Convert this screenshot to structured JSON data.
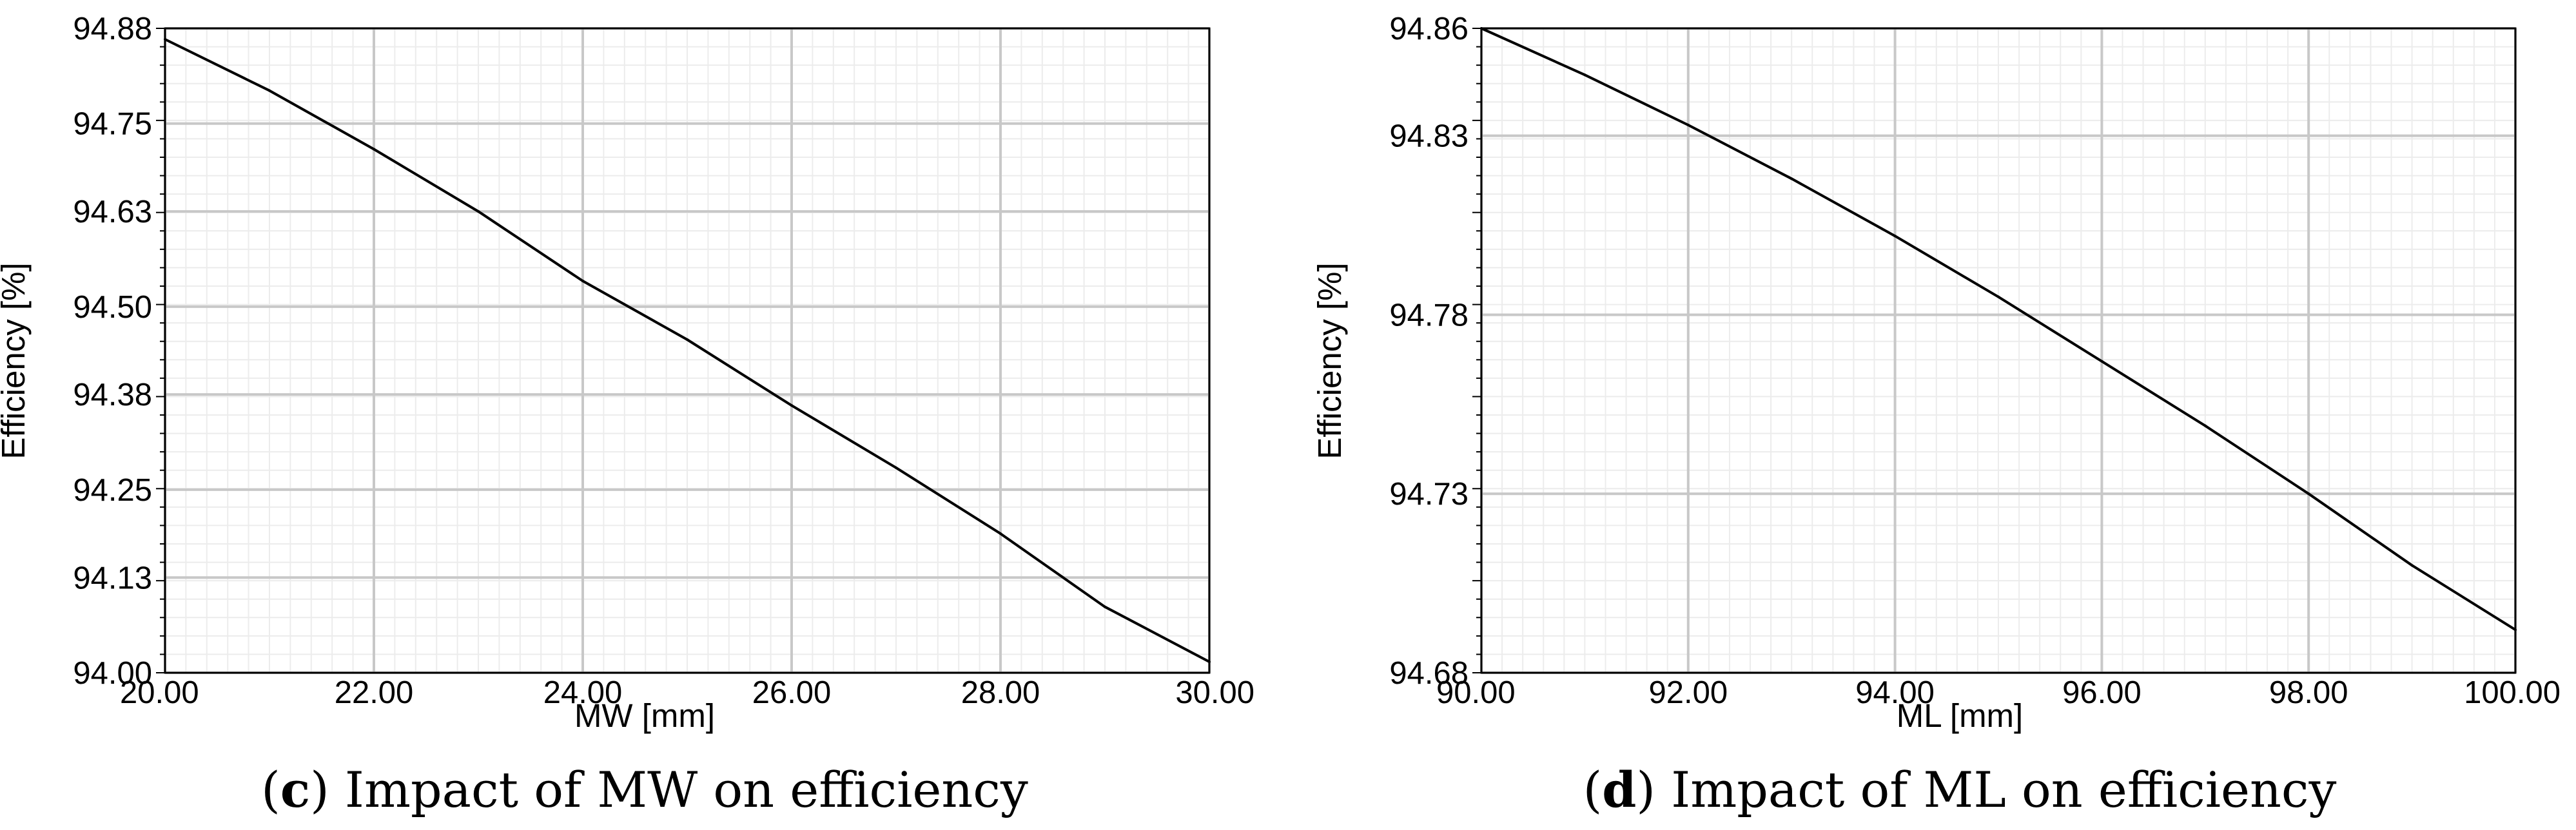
{
  "chart_data": [
    {
      "type": "line",
      "caption_letter": "c",
      "caption_text": "Impact of MW on efficiency",
      "xlabel": "MW [mm]",
      "ylabel": "Efficiency [%]",
      "xlim": [
        20,
        30
      ],
      "ylim": [
        94.0,
        94.88
      ],
      "x_ticks": [
        20,
        22,
        24,
        26,
        28,
        30
      ],
      "x_tick_labels": [
        "20.00",
        "22.00",
        "24.00",
        "26.00",
        "28.00",
        "30.00"
      ],
      "y_ticks": [
        94.0,
        94.13,
        94.25,
        94.38,
        94.5,
        94.63,
        94.75,
        94.88
      ],
      "y_tick_labels": [
        "94.00",
        "94.13",
        "94.25",
        "94.38",
        "94.50",
        "94.63",
        "94.75",
        "94.88"
      ],
      "grid": true,
      "series": [
        {
          "x": [
            20,
            21,
            22,
            23,
            24,
            25,
            26,
            27,
            28,
            29,
            30
          ],
          "y": [
            94.865,
            94.795,
            94.715,
            94.63,
            94.535,
            94.455,
            94.365,
            94.28,
            94.19,
            94.09,
            94.015
          ]
        }
      ]
    },
    {
      "type": "line",
      "caption_letter": "d",
      "caption_text": "Impact of ML on efficiency",
      "xlabel": "ML [mm]",
      "ylabel": "Efficiency [%]",
      "xlim": [
        90,
        100
      ],
      "ylim": [
        94.68,
        94.86
      ],
      "x_ticks": [
        90,
        92,
        94,
        96,
        98,
        100
      ],
      "x_tick_labels": [
        "90.00",
        "92.00",
        "94.00",
        "96.00",
        "98.00",
        "100.00"
      ],
      "y_ticks": [
        94.68,
        94.73,
        94.78,
        94.83,
        94.86
      ],
      "y_tick_labels": [
        "94.68",
        "94.73",
        "94.78",
        "94.83",
        "94.86"
      ],
      "grid": true,
      "series": [
        {
          "x": [
            90,
            91,
            92,
            93,
            94,
            95,
            96,
            97,
            98,
            99,
            100
          ],
          "y": [
            94.86,
            94.847,
            94.833,
            94.818,
            94.802,
            94.785,
            94.767,
            94.749,
            94.73,
            94.71,
            94.692
          ]
        }
      ]
    }
  ]
}
